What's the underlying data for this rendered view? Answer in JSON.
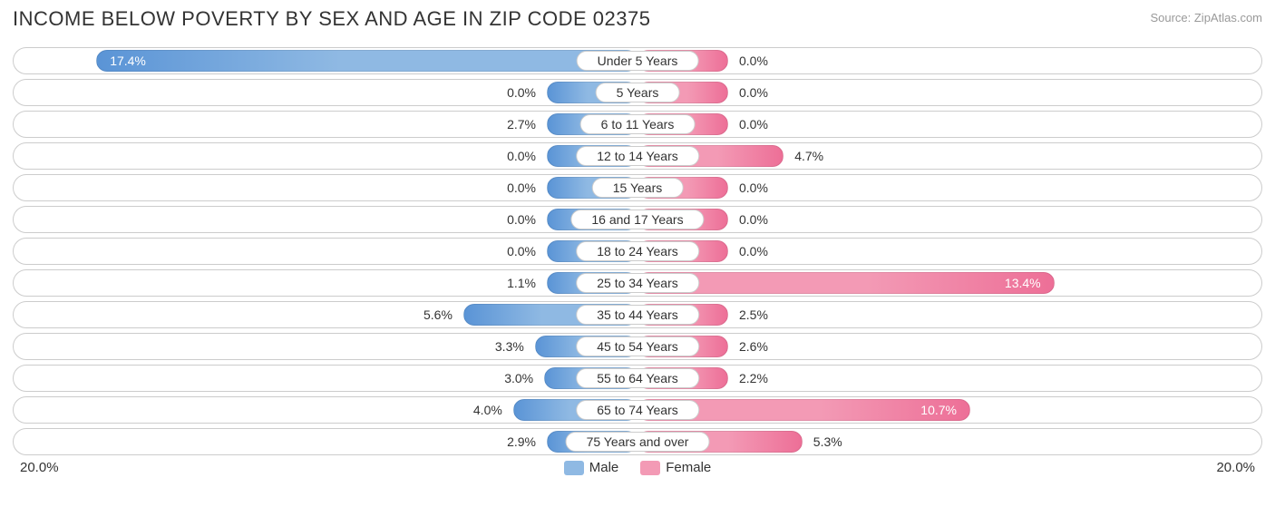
{
  "title": "INCOME BELOW POVERTY BY SEX AND AGE IN ZIP CODE 02375",
  "source": "Source: ZipAtlas.com",
  "axis_max": 20.0,
  "axis_max_label": "20.0%",
  "legend": {
    "male": "Male",
    "female": "Female"
  },
  "colors": {
    "male_fill": "#8fb9e3",
    "male_dark": "#5a94d6",
    "female_fill": "#f39ab5",
    "female_dark": "#ed6f97",
    "row_border": "#cccccc",
    "text": "#333333",
    "bg": "#ffffff"
  },
  "min_bar_pct": 14.5,
  "inside_threshold": 10.0,
  "rows": [
    {
      "label": "Under 5 Years",
      "male": 17.4,
      "female": 0.0
    },
    {
      "label": "5 Years",
      "male": 0.0,
      "female": 0.0
    },
    {
      "label": "6 to 11 Years",
      "male": 2.7,
      "female": 0.0
    },
    {
      "label": "12 to 14 Years",
      "male": 0.0,
      "female": 4.7
    },
    {
      "label": "15 Years",
      "male": 0.0,
      "female": 0.0
    },
    {
      "label": "16 and 17 Years",
      "male": 0.0,
      "female": 0.0
    },
    {
      "label": "18 to 24 Years",
      "male": 0.0,
      "female": 0.0
    },
    {
      "label": "25 to 34 Years",
      "male": 1.1,
      "female": 13.4
    },
    {
      "label": "35 to 44 Years",
      "male": 5.6,
      "female": 2.5
    },
    {
      "label": "45 to 54 Years",
      "male": 3.3,
      "female": 2.6
    },
    {
      "label": "55 to 64 Years",
      "male": 3.0,
      "female": 2.2
    },
    {
      "label": "65 to 74 Years",
      "male": 4.0,
      "female": 10.7
    },
    {
      "label": "75 Years and over",
      "male": 2.9,
      "female": 5.3
    }
  ]
}
